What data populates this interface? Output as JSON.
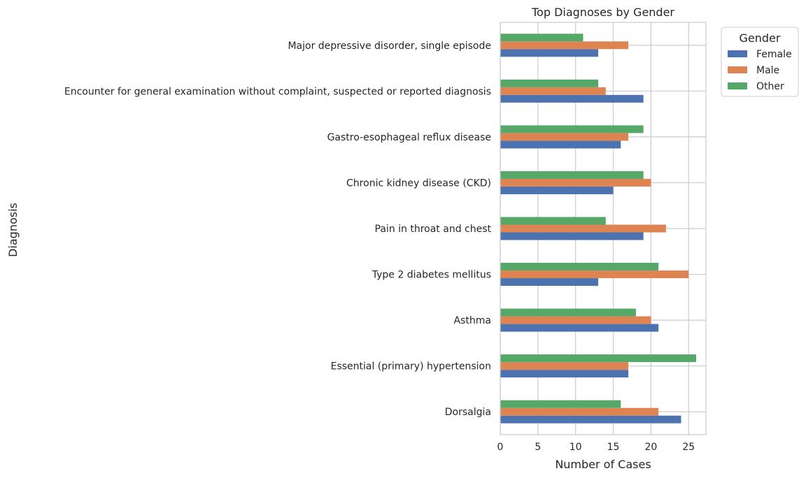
{
  "chart_data": {
    "type": "bar",
    "orientation": "horizontal",
    "title": "Top Diagnoses by Gender",
    "xlabel": "Number of Cases",
    "ylabel": "Diagnosis",
    "xlim": [
      0,
      27.3
    ],
    "xticks": [
      0,
      5,
      10,
      15,
      20,
      25
    ],
    "grid": true,
    "legend": {
      "title": "Gender",
      "placement": "outside-top-right"
    },
    "categories": [
      "Dorsalgia",
      "Essential (primary) hypertension",
      "Asthma",
      "Type 2 diabetes mellitus",
      "Pain in throat and chest",
      "Chronic kidney disease (CKD)",
      "Gastro-esophageal reflux disease",
      "Encounter for general examination without complaint, suspected or reported diagnosis",
      "Major depressive disorder, single episode"
    ],
    "series": [
      {
        "name": "Female",
        "color": "#4c72b0",
        "values": [
          24,
          17,
          21,
          13,
          19,
          15,
          16,
          19,
          13
        ]
      },
      {
        "name": "Male",
        "color": "#dd8452",
        "values": [
          21,
          17,
          20,
          25,
          22,
          20,
          17,
          14,
          17
        ]
      },
      {
        "name": "Other",
        "color": "#55a868",
        "values": [
          16,
          26,
          18,
          21,
          14,
          19,
          19,
          13,
          11
        ]
      }
    ]
  }
}
